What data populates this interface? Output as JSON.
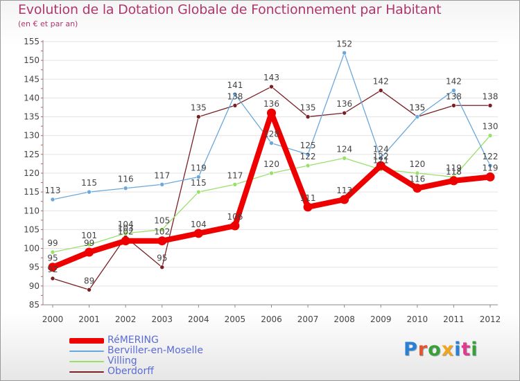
{
  "header": {
    "title": "Evolution de la Dotation Globale de Fonctionnement par Habitant",
    "subtitle": "(en € et par an)"
  },
  "logo": {
    "text": "Proxiti",
    "colors": [
      "#2b7fd4",
      "#e8532f",
      "#3aa035",
      "#f2a51a",
      "#2b7fd4",
      "#e03c8e",
      "#3aa035"
    ]
  },
  "chart_data": {
    "type": "line",
    "title": "Evolution de la Dotation Globale de Fonctionnement par Habitant",
    "subtitle": "(en € et par an)",
    "xlabel": "",
    "ylabel": "",
    "x": [
      2000,
      2001,
      2002,
      2003,
      2004,
      2005,
      2006,
      2007,
      2008,
      2009,
      2010,
      2011,
      2012
    ],
    "ylim": [
      85,
      155
    ],
    "yticks": [
      85,
      90,
      95,
      100,
      105,
      110,
      115,
      120,
      125,
      130,
      135,
      140,
      145,
      150,
      155
    ],
    "grid": "horizontal",
    "legend_position": "bottom-left",
    "series": [
      {
        "name": "Oberdorff",
        "color": "#7a1f24",
        "values": [
          92,
          89,
          103,
          95,
          135,
          138,
          143,
          135,
          136,
          142,
          135,
          138,
          138
        ]
      },
      {
        "name": "Villing",
        "color": "#99e06a",
        "values": [
          99,
          101,
          104,
          105,
          115,
          117,
          120,
          122,
          124,
          121,
          120,
          119,
          130
        ]
      },
      {
        "name": "Berviller-en-Moselle",
        "color": "#6aa7da",
        "values": [
          113,
          115,
          116,
          117,
          119,
          141,
          128,
          125,
          152,
          124,
          135,
          142,
          122
        ]
      },
      {
        "name": "RéMERING",
        "color": "#ee0000",
        "values": [
          95,
          99,
          102,
          102,
          104,
          106,
          136,
          111,
          113,
          122,
          116,
          118,
          119
        ]
      }
    ],
    "legend_order": [
      "RéMERING",
      "Berviller-en-Moselle",
      "Villing",
      "Oberdorff"
    ]
  }
}
